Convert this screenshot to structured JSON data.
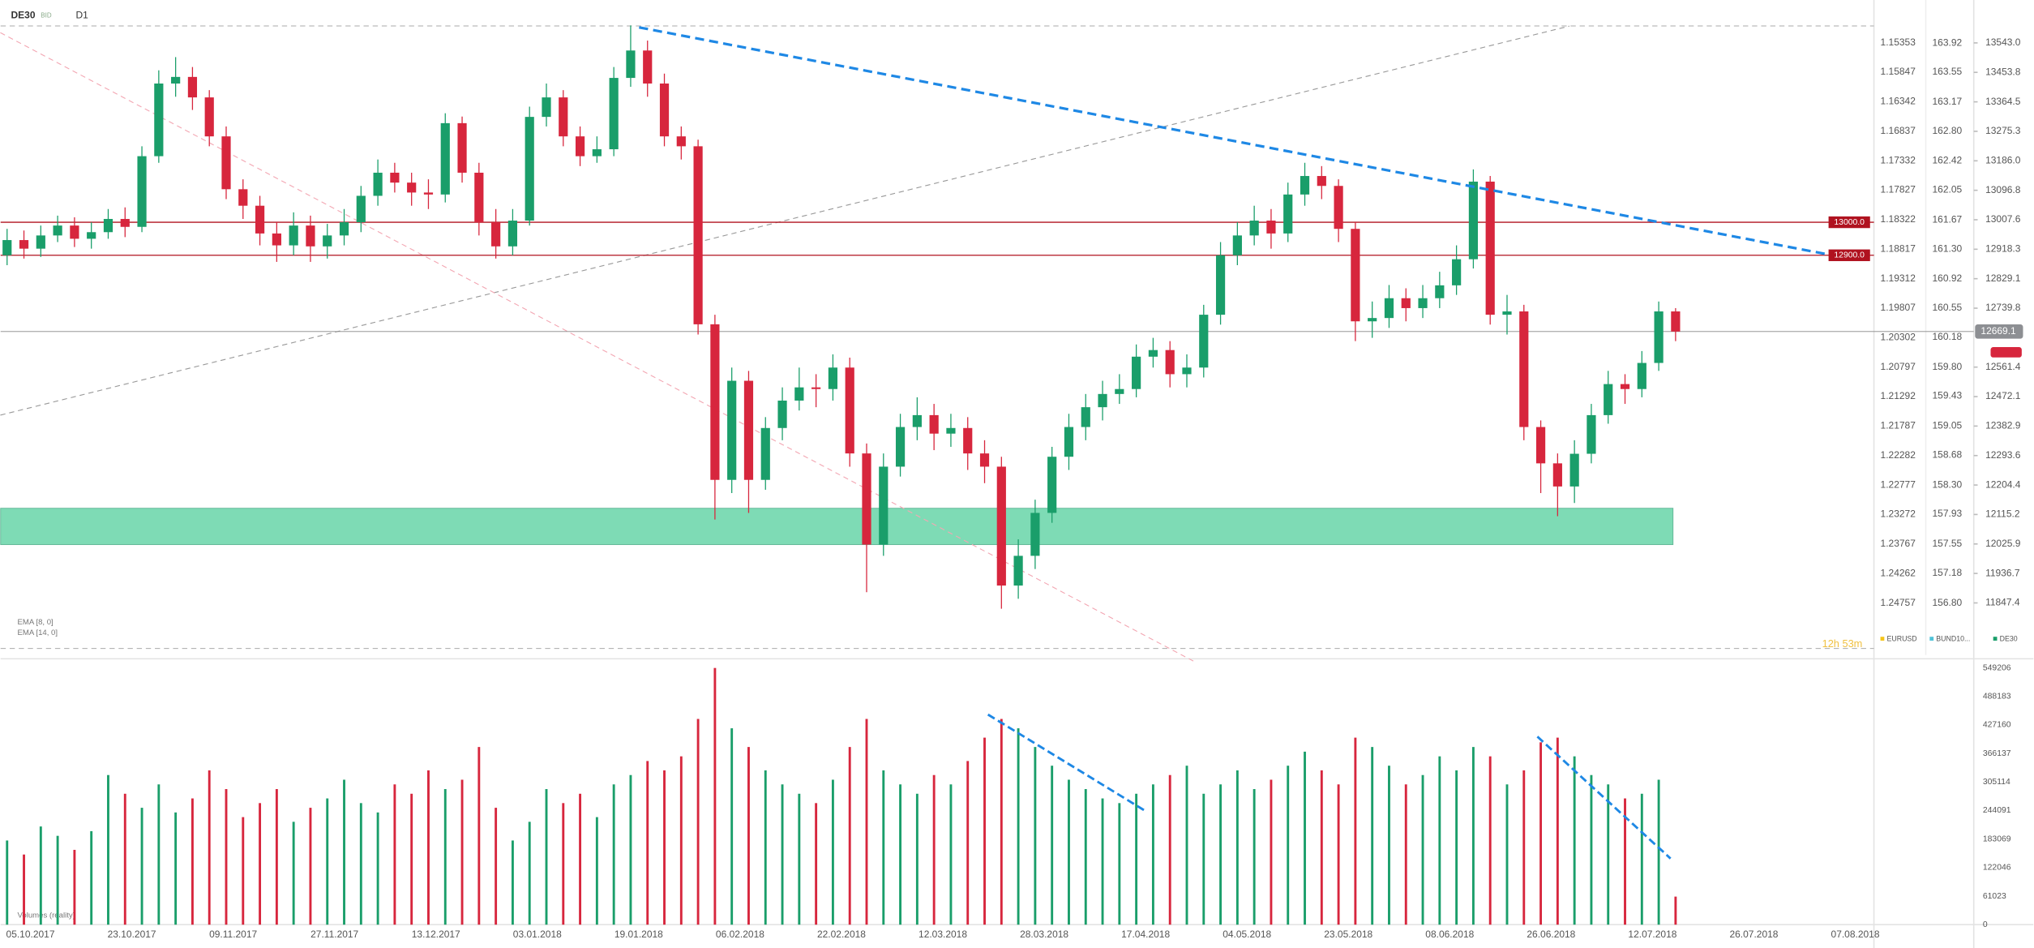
{
  "chart_data": {
    "type": "candlestick",
    "title": "DE30",
    "subtitle": "BID",
    "timeframe": "D1",
    "indicators": [
      "EMA [8, 0]",
      "EMA [14, 0]",
      "Volumes (reality)"
    ],
    "timer": "12h 53m",
    "up_color": "#1a9e6a",
    "down_color": "#d7263d",
    "open": [
      12900,
      12946,
      12920,
      12960,
      12990,
      12950,
      12970,
      13010,
      12986,
      13200,
      13420,
      13440,
      13378,
      13260,
      13100,
      13050,
      12966,
      12930,
      12990,
      12927,
      12960,
      13000,
      13080,
      13150,
      13120,
      13090,
      13084,
      13300,
      13150,
      13000,
      12927,
      13005,
      13319,
      13378,
      13260,
      13200,
      13221,
      13437,
      13520,
      13420,
      13260,
      13230,
      12691,
      12220,
      12520,
      12220,
      12377,
      12460,
      12500,
      12495,
      12560,
      12300,
      12024,
      12260,
      12380,
      12416,
      12360,
      12377,
      12300,
      12260,
      11900,
      11990,
      12120,
      12290,
      12380,
      12440,
      12480,
      12495,
      12593,
      12613,
      12540,
      12560,
      12720,
      12900,
      12960,
      13005,
      12966,
      13084,
      13140,
      13110,
      12980,
      12700,
      12710,
      12770,
      12740,
      12770,
      12809,
      12888,
      13123,
      12720,
      12730,
      12380,
      12270,
      12200,
      12299,
      12416,
      12510,
      12495,
      12574,
      12730
    ],
    "high": [
      12980,
      12975,
      12990,
      13020,
      13015,
      13000,
      13040,
      13045,
      13230,
      13460,
      13500,
      13470,
      13400,
      13290,
      13130,
      13080,
      13000,
      13030,
      13020,
      12995,
      13040,
      13110,
      13190,
      13180,
      13150,
      13130,
      13330,
      13320,
      13180,
      13040,
      13040,
      13350,
      13420,
      13400,
      13290,
      13260,
      13470,
      13596,
      13550,
      13450,
      13290,
      13250,
      12720,
      12560,
      12550,
      12410,
      12500,
      12560,
      12540,
      12600,
      12590,
      12330,
      12300,
      12420,
      12470,
      12450,
      12420,
      12410,
      12340,
      12290,
      12040,
      12160,
      12320,
      12420,
      12480,
      12520,
      12540,
      12630,
      12650,
      12640,
      12600,
      12750,
      12940,
      13000,
      13050,
      13040,
      13120,
      13180,
      13170,
      13130,
      13000,
      12760,
      12810,
      12800,
      12810,
      12850,
      12930,
      13160,
      13140,
      12780,
      12750,
      12400,
      12300,
      12340,
      12450,
      12550,
      12540,
      12610,
      12760,
      12740
    ],
    "low": [
      12870,
      12890,
      12895,
      12940,
      12925,
      12920,
      12950,
      12955,
      12970,
      13180,
      13380,
      13340,
      13230,
      13070,
      13010,
      12930,
      12880,
      12900,
      12880,
      12890,
      12930,
      12970,
      13050,
      13090,
      13050,
      13040,
      13060,
      13120,
      12960,
      12890,
      12900,
      12990,
      13290,
      13230,
      13170,
      13180,
      13200,
      13410,
      13380,
      13230,
      13190,
      12660,
      12100,
      12180,
      12120,
      12190,
      12340,
      12430,
      12440,
      12460,
      12260,
      11880,
      11990,
      12230,
      12340,
      12310,
      12320,
      12250,
      12210,
      11830,
      11860,
      11950,
      12090,
      12250,
      12340,
      12400,
      12450,
      12470,
      12560,
      12500,
      12500,
      12530,
      12690,
      12870,
      12930,
      12920,
      12940,
      13050,
      13070,
      12940,
      12640,
      12650,
      12680,
      12700,
      12710,
      12740,
      12780,
      12860,
      12690,
      12660,
      12340,
      12180,
      12110,
      12150,
      12270,
      12390,
      12450,
      12470,
      12550,
      12640
    ],
    "close": [
      12946,
      12920,
      12960,
      12990,
      12950,
      12970,
      13010,
      12986,
      13200,
      13420,
      13440,
      13378,
      13260,
      13100,
      13050,
      12966,
      12930,
      12990,
      12927,
      12960,
      13000,
      13080,
      13150,
      13120,
      13090,
      13084,
      13300,
      13150,
      13000,
      12927,
      13005,
      13319,
      13378,
      13260,
      13200,
      13221,
      13437,
      13520,
      13420,
      13260,
      13230,
      12691,
      12220,
      12520,
      12220,
      12377,
      12460,
      12500,
      12495,
      12560,
      12300,
      12024,
      12260,
      12380,
      12416,
      12360,
      12377,
      12300,
      12260,
      11900,
      11990,
      12120,
      12290,
      12380,
      12440,
      12480,
      12495,
      12593,
      12613,
      12540,
      12560,
      12720,
      12900,
      12960,
      13005,
      12966,
      13084,
      13140,
      13110,
      12980,
      12700,
      12710,
      12770,
      12740,
      12770,
      12809,
      12888,
      13123,
      12720,
      12730,
      12380,
      12270,
      12200,
      12299,
      12416,
      12510,
      12495,
      12574,
      12730,
      12669
    ],
    "ylim": [
      11690,
      13614
    ],
    "yticks": [
      {
        "value": 13543,
        "label": "13543.0"
      },
      {
        "value": 13453.8,
        "label": "13453.8"
      },
      {
        "value": 13364.5,
        "label": "13364.5"
      },
      {
        "value": 13275.3,
        "label": "13275.3"
      },
      {
        "value": 13186,
        "label": "13186.0"
      },
      {
        "value": 13096.8,
        "label": "13096.8"
      },
      {
        "value": 13007.6,
        "label": "13007.6"
      },
      {
        "value": 12918.3,
        "label": "12918.3"
      },
      {
        "value": 12829.1,
        "label": "12829.1"
      },
      {
        "value": 12739.8,
        "label": "12739.8"
      },
      {
        "value": 12561.4,
        "label": "12561.4"
      },
      {
        "value": 12472.1,
        "label": "12472.1"
      },
      {
        "value": 12382.9,
        "label": "12382.9"
      },
      {
        "value": 12293.6,
        "label": "12293.6"
      },
      {
        "value": 12204.4,
        "label": "12204.4"
      },
      {
        "value": 12115.2,
        "label": "12115.2"
      },
      {
        "value": 12025.9,
        "label": "12025.9"
      },
      {
        "value": 11936.7,
        "label": "11936.7"
      },
      {
        "value": 11847.4,
        "label": "11847.4"
      }
    ],
    "last_price": {
      "value": 12669.1,
      "label": "12669.1"
    },
    "levels": [
      {
        "value": 13000,
        "label": "13000.0",
        "color": "#b0121f"
      },
      {
        "value": 12900,
        "label": "12900.0",
        "color": "#b0121f"
      }
    ],
    "zone": [
      12024,
      12134
    ],
    "zone_color": "#5fd3a3",
    "trendlines": [
      {
        "x": [
          37.5,
          108
        ],
        "y": [
          13590,
          12903
        ],
        "color": "#1e88e5"
      }
    ],
    "guidelines": [
      {
        "x": [
          -0.4,
          92.7
        ],
        "y": [
          12416,
          13594
        ],
        "color": "#999"
      },
      {
        "x": [
          -0.4,
          70.4
        ],
        "y": [
          13574,
          11671
        ],
        "color": "#f3a7b3"
      }
    ],
    "eurusd": {
      "name": "EURUSD",
      "color": "#f5c518",
      "ylim": [
        1.25628,
        1.14961
      ],
      "yticks": [
        1.15353,
        1.15847,
        1.16342,
        1.16837,
        1.17332,
        1.17827,
        1.18322,
        1.18817,
        1.19312,
        1.19807,
        1.20302,
        1.20797,
        1.21292,
        1.21787,
        1.22282,
        1.22777,
        1.23272,
        1.23767,
        1.24262,
        1.24757
      ]
    },
    "bund": {
      "name": "BUND10...",
      "color": "#4fc3d8",
      "ylim": [
        156.14,
        164.22
      ],
      "yticks": [
        163.92,
        163.55,
        163.17,
        {
          "value": 162.8,
          "label": "162.80"
        },
        162.42,
        162.05,
        161.67,
        {
          "value": 161.3,
          "label": "161.30"
        },
        160.92,
        160.55,
        160.18,
        {
          "value": 159.8,
          "label": "159.80"
        },
        159.43,
        159.05,
        158.68,
        {
          "value": 158.3,
          "label": "158.30"
        },
        157.93,
        157.55,
        157.18,
        {
          "value": 156.8,
          "label": "156.80"
        }
      ]
    },
    "volume": {
      "values": [
        180000,
        150000,
        210000,
        190000,
        160000,
        200000,
        320000,
        280000,
        250000,
        300000,
        240000,
        270000,
        330000,
        290000,
        230000,
        260000,
        290000,
        220000,
        250000,
        270000,
        310000,
        260000,
        240000,
        300000,
        280000,
        330000,
        290000,
        310000,
        380000,
        250000,
        180000,
        220000,
        290000,
        260000,
        280000,
        230000,
        300000,
        320000,
        350000,
        330000,
        360000,
        440000,
        549000,
        420000,
        380000,
        330000,
        300000,
        280000,
        260000,
        310000,
        380000,
        440000,
        330000,
        300000,
        280000,
        320000,
        300000,
        350000,
        400000,
        440000,
        420000,
        380000,
        340000,
        310000,
        290000,
        270000,
        260000,
        280000,
        300000,
        320000,
        340000,
        280000,
        300000,
        330000,
        290000,
        310000,
        340000,
        370000,
        330000,
        300000,
        400000,
        380000,
        340000,
        300000,
        320000,
        360000,
        330000,
        380000,
        360000,
        300000,
        330000,
        390000,
        400000,
        360000,
        320000,
        300000,
        270000,
        280000,
        310000,
        60000
      ],
      "ylim": [
        0,
        549206
      ],
      "yticks": [
        549206,
        488183,
        427160,
        366137,
        305114,
        244091,
        183069,
        122046,
        61023,
        0
      ],
      "trendlines": [
        {
          "x": [
            58.2,
            67.5
          ],
          "y": [
            449360,
            244100
          ]
        },
        {
          "x": [
            90.8,
            98.7
          ],
          "y": [
            402200,
            141500
          ]
        }
      ]
    },
    "xticks": [
      "05.10.2017",
      "23.10.2017",
      "09.11.2017",
      "27.11.2017",
      "13.12.2017",
      "03.01.2018",
      "19.01.2018",
      "06.02.2018",
      "22.02.2018",
      "12.03.2018",
      "28.03.2018",
      "17.04.2018",
      "04.05.2018",
      "23.05.2018",
      "08.06.2018",
      "26.06.2018",
      "12.07.2018",
      "26.07.2018",
      "07.08.2018"
    ]
  }
}
